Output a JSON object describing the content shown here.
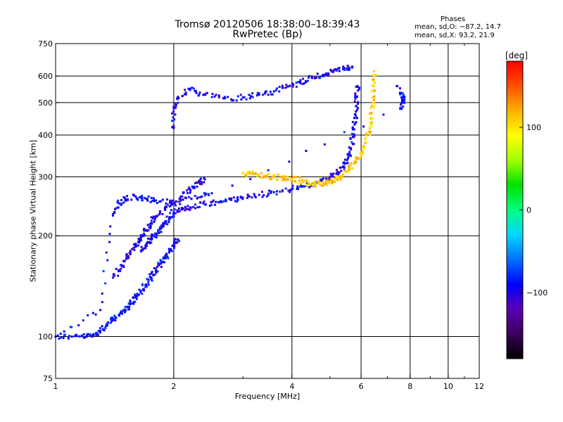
{
  "header": {
    "title_line1": "Tromsø 20120506 18:38:00–18:39:43",
    "title_line2": "RwPretec (Bp)"
  },
  "phases": {
    "title": "Phases",
    "o_line": "mean, sd,O: −87.2, 14.7",
    "x_line": "mean, sd,X:  93.2, 21.9"
  },
  "colorbar": {
    "unit_label": "[deg]",
    "tick_labels": [
      "100",
      "0",
      "−100"
    ],
    "tick_values": [
      100,
      0,
      -100
    ],
    "range": [
      -180,
      180
    ],
    "colors": [
      "#000000",
      "#3a005a",
      "#5a00b4",
      "#0000ff",
      "#0070ff",
      "#00d8ff",
      "#00ff80",
      "#00e000",
      "#a0ff00",
      "#ffff00",
      "#ffb000",
      "#ff5000",
      "#ff0000"
    ]
  },
  "chart_data": {
    "type": "scatter",
    "title": "Tromsø 20120506 18:38:00–18:39:43",
    "subtitle": "RwPretec (Bp)",
    "xlabel": "Frequency [MHz]",
    "ylabel": "Stationary phase Virtual Height [km]",
    "xscale": "log",
    "yscale": "log",
    "xlim": [
      1,
      12
    ],
    "ylim": [
      75,
      750
    ],
    "xticks": [
      1,
      2,
      4,
      6,
      8,
      10,
      12
    ],
    "xtick_labels": [
      "1",
      "2",
      "4",
      "6",
      "8",
      "10",
      "12"
    ],
    "xgrid": [
      2,
      4,
      6,
      8,
      10
    ],
    "yticks": [
      75,
      100,
      200,
      300,
      400,
      500,
      600,
      750
    ],
    "ytick_labels": [
      "75",
      "100",
      "200",
      "300",
      "400",
      "500",
      "600",
      "750"
    ],
    "ygrid": [
      100,
      200,
      300,
      400,
      500,
      600
    ],
    "grid": true,
    "color_variable": "phase (deg)",
    "series": [
      {
        "color_phase": -90,
        "points": [
          [
            1.0,
            100
          ],
          [
            1.1,
            100
          ],
          [
            1.2,
            100
          ],
          [
            1.25,
            101
          ],
          [
            1.3,
            104
          ],
          [
            1.35,
            108
          ],
          [
            1.4,
            112
          ],
          [
            1.45,
            116
          ],
          [
            1.5,
            120
          ],
          [
            1.55,
            125
          ],
          [
            1.6,
            131
          ],
          [
            1.65,
            137
          ],
          [
            1.7,
            143
          ],
          [
            1.75,
            150
          ],
          [
            1.8,
            157
          ],
          [
            1.85,
            165
          ],
          [
            1.9,
            172
          ],
          [
            1.95,
            180
          ],
          [
            2.0,
            188
          ],
          [
            2.05,
            195
          ]
        ]
      },
      {
        "color_phase": -95,
        "points": [
          [
            1.65,
            180
          ],
          [
            1.7,
            188
          ],
          [
            1.75,
            196
          ],
          [
            1.8,
            203
          ],
          [
            1.85,
            210
          ],
          [
            1.9,
            218
          ],
          [
            1.95,
            226
          ],
          [
            2.0,
            235
          ],
          [
            2.1,
            240
          ],
          [
            2.2,
            243
          ],
          [
            2.4,
            248
          ],
          [
            2.6,
            252
          ],
          [
            2.8,
            256
          ],
          [
            3.0,
            260
          ],
          [
            3.3,
            265
          ],
          [
            3.6,
            270
          ],
          [
            4.0,
            276
          ],
          [
            4.3,
            281
          ],
          [
            4.6,
            288
          ],
          [
            4.9,
            296
          ],
          [
            5.2,
            308
          ],
          [
            5.4,
            322
          ],
          [
            5.55,
            340
          ],
          [
            5.65,
            365
          ],
          [
            5.72,
            395
          ],
          [
            5.78,
            430
          ],
          [
            5.82,
            470
          ],
          [
            5.86,
            520
          ],
          [
            5.88,
            560
          ]
        ]
      },
      {
        "color_phase": -100,
        "points": [
          [
            1.4,
            150
          ],
          [
            1.45,
            158
          ],
          [
            1.5,
            168
          ],
          [
            1.55,
            178
          ],
          [
            1.6,
            188
          ],
          [
            1.65,
            198
          ],
          [
            1.7,
            208
          ],
          [
            1.75,
            218
          ],
          [
            1.8,
            228
          ],
          [
            1.9,
            240
          ],
          [
            2.0,
            250
          ],
          [
            2.1,
            262
          ],
          [
            2.2,
            275
          ],
          [
            2.3,
            288
          ],
          [
            2.4,
            295
          ]
        ]
      },
      {
        "color_phase": -95,
        "points": [
          [
            2.0,
            420
          ],
          [
            2.0,
            480
          ],
          [
            2.05,
            520
          ],
          [
            2.2,
            545
          ],
          [
            2.4,
            530
          ],
          [
            2.7,
            515
          ],
          [
            3.0,
            518
          ],
          [
            3.3,
            528
          ],
          [
            3.6,
            540
          ],
          [
            3.9,
            558
          ],
          [
            4.2,
            575
          ],
          [
            4.5,
            592
          ],
          [
            4.8,
            605
          ],
          [
            5.1,
            618
          ],
          [
            5.4,
            630
          ],
          [
            5.7,
            640
          ]
        ]
      },
      {
        "color_phase": 110,
        "points": [
          [
            3.0,
            308
          ],
          [
            3.2,
            305
          ],
          [
            3.4,
            302
          ],
          [
            3.6,
            300
          ],
          [
            3.8,
            298
          ],
          [
            4.0,
            296
          ],
          [
            4.2,
            292
          ],
          [
            4.4,
            288
          ],
          [
            4.6,
            285
          ],
          [
            4.8,
            286
          ],
          [
            5.0,
            290
          ],
          [
            5.2,
            296
          ],
          [
            5.4,
            305
          ],
          [
            5.6,
            318
          ],
          [
            5.8,
            335
          ],
          [
            6.0,
            355
          ],
          [
            6.15,
            380
          ],
          [
            6.28,
            410
          ],
          [
            6.36,
            450
          ],
          [
            6.42,
            500
          ],
          [
            6.46,
            560
          ],
          [
            6.48,
            620
          ]
        ]
      },
      {
        "color_phase": -90,
        "points": [
          [
            1.0,
            100
          ],
          [
            1.3,
            120
          ],
          [
            1.4,
            230
          ],
          [
            1.45,
            250
          ],
          [
            1.5,
            260
          ],
          [
            1.6,
            262
          ],
          [
            1.7,
            258
          ],
          [
            1.8,
            255
          ],
          [
            2.0,
            250
          ],
          [
            2.3,
            260
          ],
          [
            2.5,
            268
          ],
          [
            7.6,
            480
          ],
          [
            7.65,
            500
          ],
          [
            7.7,
            520
          ],
          [
            7.4,
            560
          ]
        ]
      }
    ]
  }
}
